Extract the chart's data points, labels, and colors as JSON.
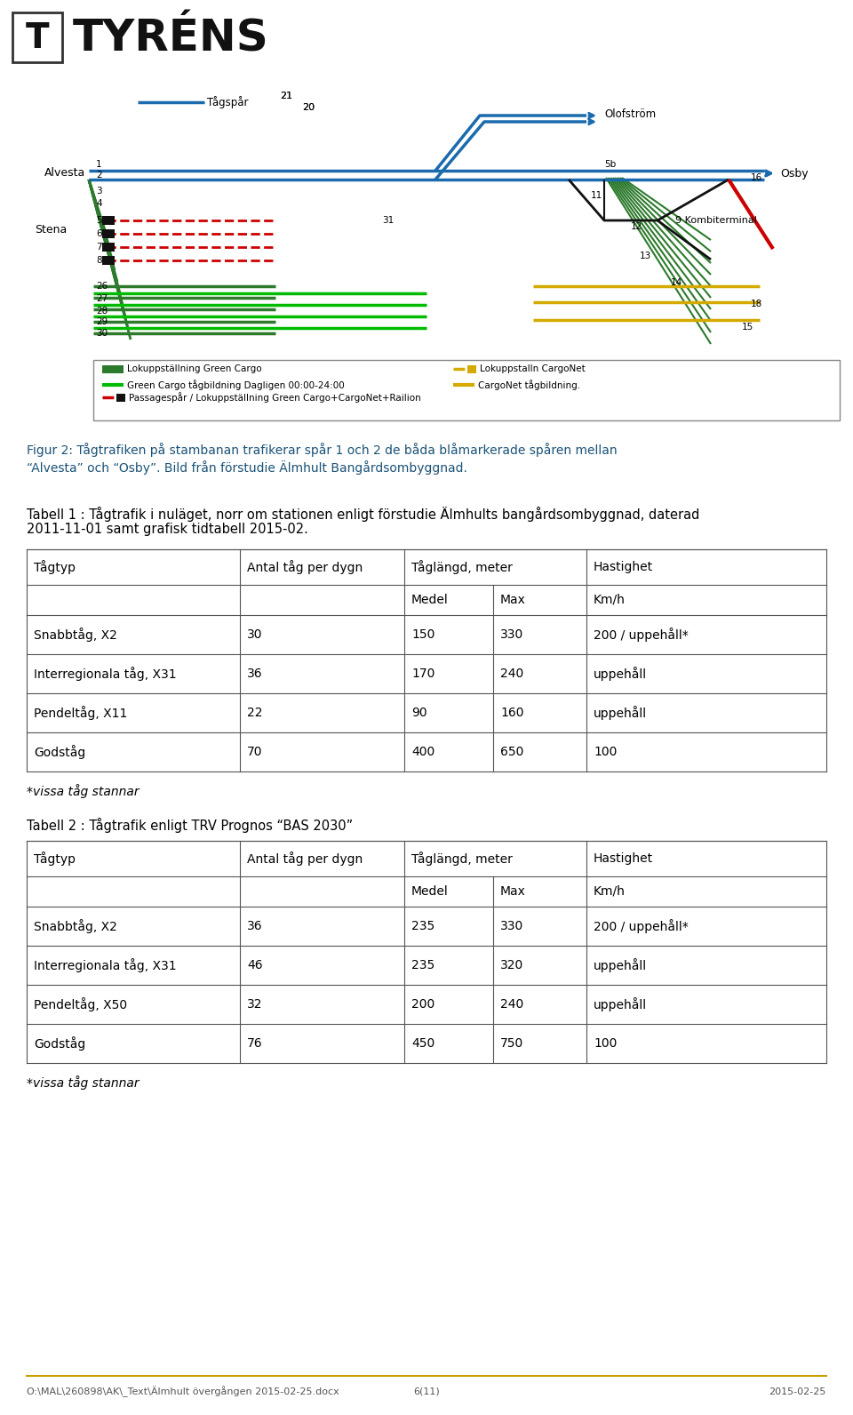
{
  "page_bg": "#ffffff",
  "fig2_caption_line1": "Figur 2: Tågtrafiken på stambanan trafikerar spår 1 och 2 de båda blåmarkerade spåren mellan",
  "fig2_caption_line2": "“Alvesta” och “Osby”. Bild från förstudie Älmhult Bangårdsombyggnad.",
  "tabell1_title_line1": "Tabell 1 : Tågtrafik i nuläget, norr om stationen enligt förstudie Älmhults bangårdsombyggnad, daterad",
  "tabell1_title_line2": "2011-11-01 samt grafisk tidtabell 2015-02.",
  "tabell1_col0_header": "Tågtyp",
  "tabell1_col1_header": "Antal tåg per dygn",
  "tabell1_col23_header": "Tåglängd, meter",
  "tabell1_col4_header": "Hastighet",
  "sub_col2": "Medel",
  "sub_col3": "Max",
  "sub_col4": "Km/h",
  "tabell1_rows": [
    [
      "Snabbtåg, X2",
      "30",
      "150",
      "330",
      "200 / uppehåll*"
    ],
    [
      "Interregionala tåg, X31",
      "36",
      "170",
      "240",
      "uppehåll"
    ],
    [
      "Pendeltåg, X11",
      "22",
      "90",
      "160",
      "uppehåll"
    ],
    [
      "Godståg",
      "70",
      "400",
      "650",
      "100"
    ]
  ],
  "tabell1_footnote": "*vissa tåg stannar",
  "tabell2_title": "Tabell 2 : Tågtrafik enligt TRV Prognos “BAS 2030”",
  "tabell2_rows": [
    [
      "Snabbtåg, X2",
      "36",
      "235",
      "330",
      "200 / uppehåll*"
    ],
    [
      "Interregionala tåg, X31",
      "46",
      "235",
      "320",
      "uppehåll"
    ],
    [
      "Pendeltåg, X50",
      "32",
      "200",
      "240",
      "uppehåll"
    ],
    [
      "Godståg",
      "76",
      "450",
      "750",
      "100"
    ]
  ],
  "tabell2_footnote": "*vissa tåg stannar",
  "footer_left": "O:\\MAL\\260898\\AK\\_Text\\Älmhult övergången 2015-02-25.docx",
  "footer_center": "6(11)",
  "footer_right": "2015-02-25",
  "caption_color": "#1a5276",
  "text_color": "#000000",
  "border_color": "#555555",
  "footer_line_color": "#c8a000",
  "blue": "#1a6aad",
  "green_dark": "#2d7a2d",
  "green_bright": "#00bb00",
  "red": "#cc0000",
  "orange_yellow": "#d4aa00",
  "black": "#111111"
}
